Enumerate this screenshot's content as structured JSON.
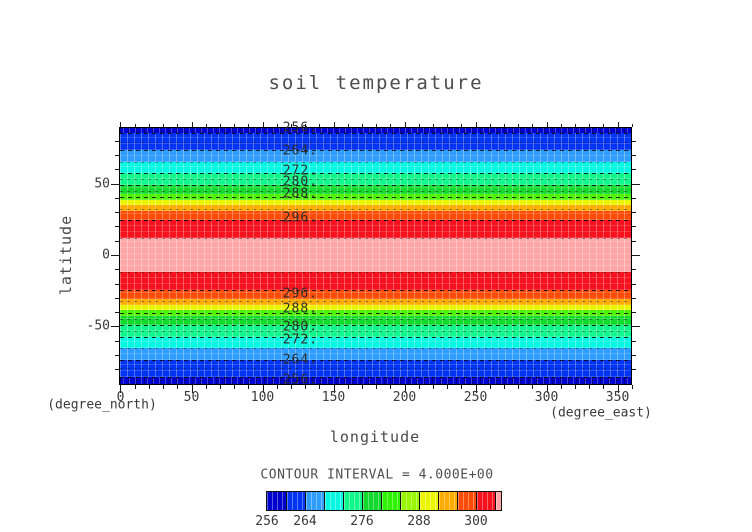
{
  "title": "soil temperature",
  "axes": {
    "x": {
      "title": "longitude",
      "unit_right": "(degree_east)",
      "unit_left": "(degree_north)",
      "major_ticks": [
        0,
        50,
        100,
        150,
        200,
        250,
        300,
        350
      ],
      "minor_tick_step": 10,
      "range": [
        0,
        360
      ]
    },
    "y": {
      "title": "latitude",
      "major_ticks": [
        50,
        0,
        -50
      ],
      "minor_tick_step": 10,
      "range": [
        -90,
        90
      ]
    }
  },
  "annotation": {
    "contour_interval": "CONTOUR INTERVAL = 4.000E+00"
  },
  "colorbar": {
    "labels": [
      "256",
      "264",
      "276",
      "288",
      "300"
    ],
    "label_values": [
      256,
      264,
      276,
      288,
      300
    ],
    "start_value": 256,
    "step": 4,
    "segment_colors": [
      "#0101ce",
      "#0134f2",
      "#2f9dff",
      "#04f7e1",
      "#12f78c",
      "#11d92e",
      "#2ef303",
      "#9af500",
      "#ecf500",
      "#ffac02",
      "#ff4b08",
      "#f5111d",
      "#ffa7a7"
    ],
    "sliver_last": true
  },
  "chart_data": {
    "type": "heatmap",
    "subtype": "filled_contour",
    "title": "soil temperature",
    "xlabel": "longitude",
    "xunit": "(degree_east)",
    "ylabel": "latitude",
    "yunit": "(degree_north)",
    "xlim": [
      0,
      360
    ],
    "ylim": [
      -90,
      90
    ],
    "contour_interval": 4.0,
    "levels": [
      256,
      260,
      264,
      268,
      272,
      276,
      280,
      284,
      288,
      292,
      296,
      300
    ],
    "labeled_levels": [
      256,
      264,
      272,
      280,
      288,
      296
    ],
    "value_range": [
      256,
      304
    ],
    "zonal_profile": [
      {
        "lat": -89,
        "temp": 254
      },
      {
        "lat": -85,
        "temp": 256
      },
      {
        "lat": -79,
        "temp": 260
      },
      {
        "lat": -73,
        "temp": 264
      },
      {
        "lat": -65,
        "temp": 268
      },
      {
        "lat": -57,
        "temp": 272
      },
      {
        "lat": -53,
        "temp": 276
      },
      {
        "lat": -49,
        "temp": 280
      },
      {
        "lat": -45,
        "temp": 284
      },
      {
        "lat": -41,
        "temp": 288
      },
      {
        "lat": -32,
        "temp": 292
      },
      {
        "lat": -25,
        "temp": 296
      },
      {
        "lat": -12,
        "temp": 300
      },
      {
        "lat": 0,
        "temp": 303
      },
      {
        "lat": 12,
        "temp": 300
      },
      {
        "lat": 25,
        "temp": 296
      },
      {
        "lat": 32,
        "temp": 292
      },
      {
        "lat": 41,
        "temp": 288
      },
      {
        "lat": 45,
        "temp": 284
      },
      {
        "lat": 49,
        "temp": 280
      },
      {
        "lat": 53,
        "temp": 276
      },
      {
        "lat": 57,
        "temp": 272
      },
      {
        "lat": 65,
        "temp": 268
      },
      {
        "lat": 73,
        "temp": 264
      },
      {
        "lat": 79,
        "temp": 260
      },
      {
        "lat": 85,
        "temp": 256
      },
      {
        "lat": 89,
        "temp": 254
      }
    ],
    "band_edges_lat": [
      88.9,
      85.1,
      73.3,
      64.9,
      57.3,
      49.0,
      42.7,
      38.5,
      35.1,
      30.6,
      24.7,
      12.2,
      -12.2,
      -24.7,
      -30.6,
      -35.1,
      -38.5,
      -42.7,
      -49.0,
      -57.3,
      -64.9,
      -73.3,
      -85.1,
      -90.3
    ],
    "band_colors": [
      "#0101ce",
      "#0134f2",
      "#2f9dff",
      "#04f7e1",
      "#12f78c",
      "#11d92e",
      "#4ef303",
      "#ecf500",
      "#ffac02",
      "#ff4b08",
      "#f5111d",
      "#ffa7a7",
      "#f5111d",
      "#ff4b08",
      "#ffac02",
      "#ecf500",
      "#4ef303",
      "#11d92e",
      "#12f78c",
      "#04f7e1",
      "#2f9dff",
      "#0134f2",
      "#0101ce"
    ],
    "contour_lines": [
      {
        "level": 256,
        "lat": 85.1,
        "labeled": true,
        "label": "256.",
        "label_lat": 89.2
      },
      {
        "level": 260,
        "lat": 78.8,
        "labeled": false
      },
      {
        "level": 264,
        "lat": 73.3,
        "labeled": true,
        "label": "264.",
        "label_lat": 72.9
      },
      {
        "level": 268,
        "lat": 64.9,
        "labeled": false
      },
      {
        "level": 272,
        "lat": 57.3,
        "labeled": true,
        "label": "272.",
        "label_lat": 59.0
      },
      {
        "level": 276,
        "lat": 53.1,
        "labeled": false
      },
      {
        "level": 280,
        "lat": 49.0,
        "labeled": true,
        "label": "280.",
        "label_lat": 50.9
      },
      {
        "level": 284,
        "lat": 45.1,
        "labeled": false
      },
      {
        "level": 288,
        "lat": 40.6,
        "labeled": true,
        "label": "288.",
        "label_lat": 42.4
      },
      {
        "level": 292,
        "lat": 32.3,
        "labeled": false
      },
      {
        "level": 296,
        "lat": 24.7,
        "labeled": true,
        "label": "296.",
        "label_lat": 25.7
      },
      {
        "level": 300,
        "lat": 12.2,
        "labeled": false
      },
      {
        "level": 300,
        "lat": -12.2,
        "labeled": false
      },
      {
        "level": 296,
        "lat": -24.7,
        "labeled": true,
        "label": "296.",
        "label_lat": -27.3
      },
      {
        "level": 292,
        "lat": -32.3,
        "labeled": false
      },
      {
        "level": 288,
        "lat": -40.6,
        "labeled": true,
        "label": "288.",
        "label_lat": -37.7
      },
      {
        "level": 284,
        "lat": -45.1,
        "labeled": false
      },
      {
        "level": 280,
        "lat": -49.0,
        "labeled": true,
        "label": "280.",
        "label_lat": -50.5
      },
      {
        "level": 276,
        "lat": -53.1,
        "labeled": false
      },
      {
        "level": 272,
        "lat": -57.3,
        "labeled": true,
        "label": "272.",
        "label_lat": -59.7
      },
      {
        "level": 268,
        "lat": -64.9,
        "labeled": false
      },
      {
        "level": 264,
        "lat": -73.3,
        "labeled": true,
        "label": "264.",
        "label_lat": -73.6
      },
      {
        "level": 260,
        "lat": -78.8,
        "labeled": false
      },
      {
        "level": 256,
        "lat": -85.1,
        "labeled": true,
        "label": "256.",
        "label_lat": -87.5
      }
    ],
    "legend_position": "bottom",
    "grid": "cell-mesh-texture"
  }
}
